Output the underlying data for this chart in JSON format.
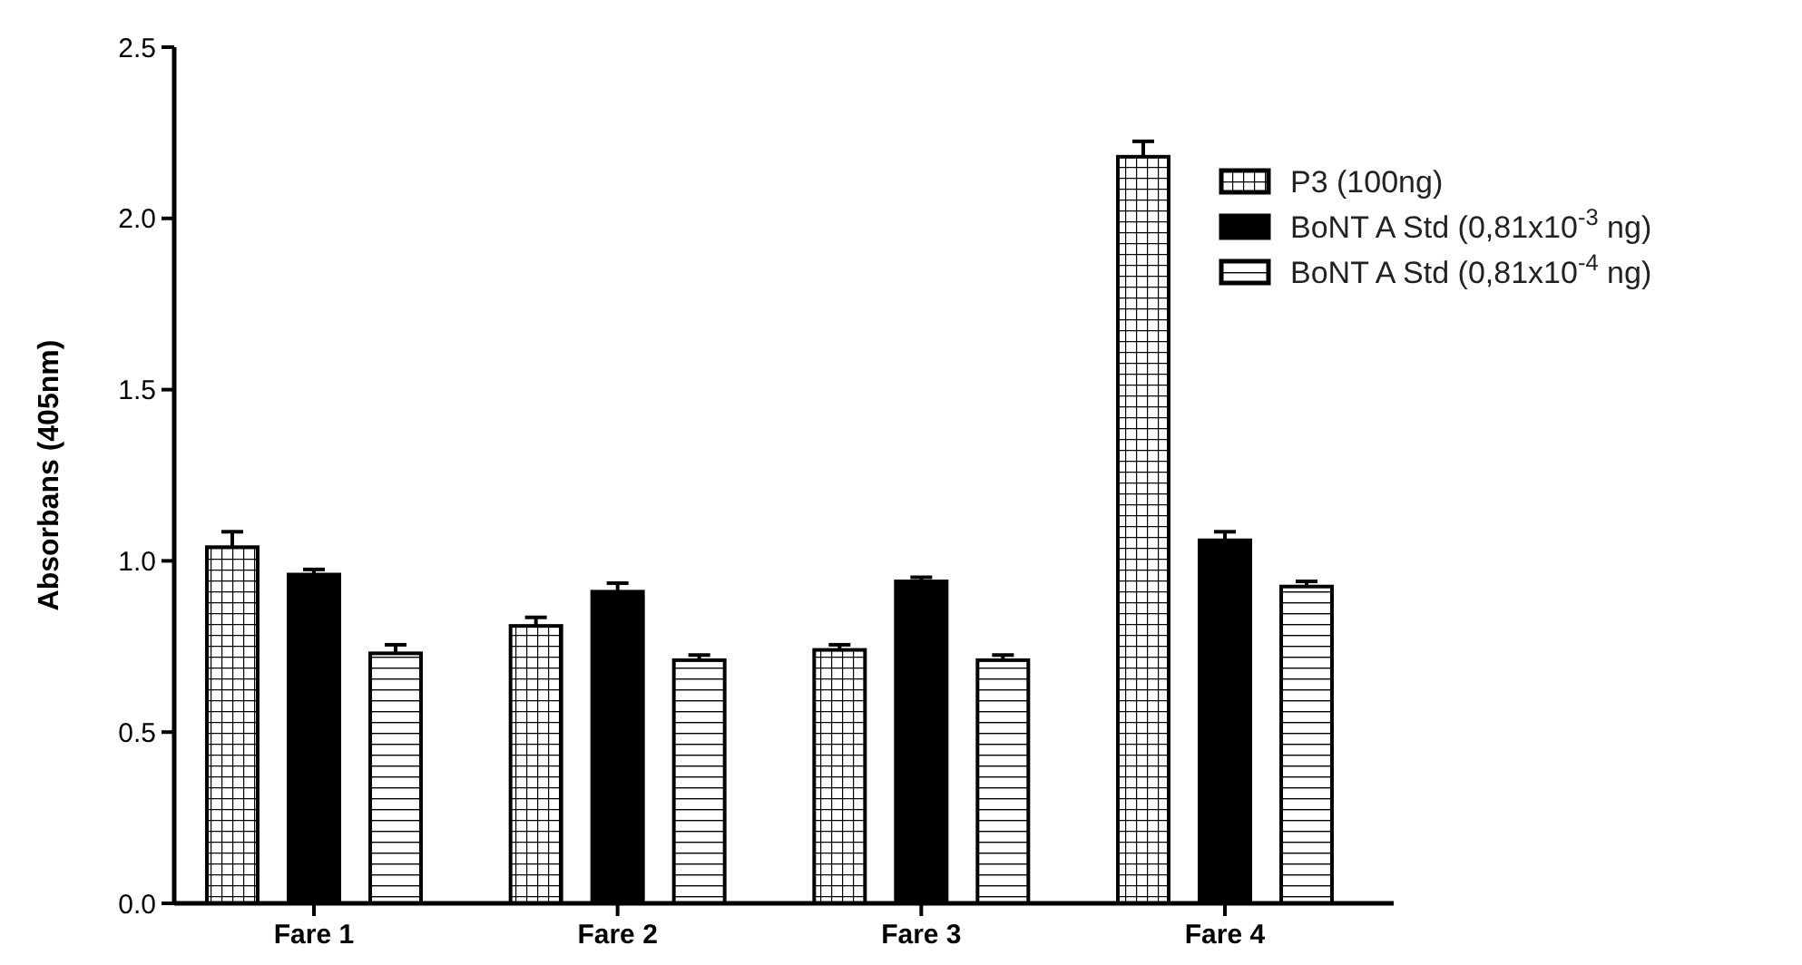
{
  "chart_data": {
    "type": "bar",
    "ylabel": "Absorbans (405nm)",
    "categories": [
      "Fare 1",
      "Fare 2",
      "Fare 3",
      "Fare 4"
    ],
    "series": [
      {
        "name": "P3 (100ng)",
        "color": "#000000",
        "values": [
          1.04,
          0.81,
          0.74,
          2.18
        ],
        "errors": [
          0.045,
          0.025,
          0.015,
          0.045
        ]
      },
      {
        "name": "BoNT A Std (0,81x10$^{-3}$ ng)",
        "color": "#000000",
        "values": [
          0.96,
          0.91,
          0.94,
          1.06
        ],
        "errors": [
          0.015,
          0.025,
          0.012,
          0.025
        ]
      },
      {
        "name": "BoNT A Std (0,81x10$^{-4}$ ng)",
        "color": "#000000",
        "values": [
          0.73,
          0.71,
          0.71,
          0.925
        ],
        "errors": [
          0.025,
          0.015,
          0.015,
          0.015
        ]
      }
    ],
    "ylim": [
      0,
      2.5
    ],
    "yticks": [
      {
        "value": 0,
        "label": "0.0"
      },
      0.5,
      {
        "value": 1,
        "label": "1.0"
      },
      1.5,
      {
        "value": 2,
        "label": "2.0"
      },
      2.5
    ],
    "grid": false,
    "legend": "top right"
  }
}
